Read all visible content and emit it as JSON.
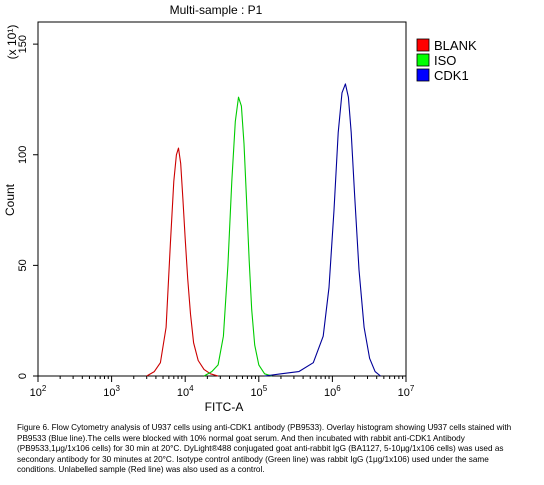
{
  "chart_data": {
    "type": "line",
    "title": "Multi-sample : P1",
    "xlabel": "FITC-A",
    "ylabel": "Count",
    "y_multiplier_label": "(x 10¹)",
    "x_scale": "log",
    "xlim": [
      100,
      10000000
    ],
    "ylim": [
      0,
      160
    ],
    "x_tick_values": [
      100,
      1000,
      10000,
      100000,
      1000000,
      10000000
    ],
    "x_tick_labels": [
      {
        "base": "10",
        "exp": "2"
      },
      {
        "base": "10",
        "exp": "3"
      },
      {
        "base": "10",
        "exp": "4"
      },
      {
        "base": "10",
        "exp": "5"
      },
      {
        "base": "10",
        "exp": "6"
      },
      {
        "base": "10",
        "exp": "7"
      }
    ],
    "y_ticks": [
      0,
      50,
      100,
      150
    ],
    "legend_position": "top-right",
    "series": [
      {
        "name": "BLANK",
        "color": "#cc0000",
        "legend_color": "#ff0000",
        "peak_x": 8000,
        "peak_y": 103,
        "points": [
          [
            3000,
            0
          ],
          [
            3800,
            2
          ],
          [
            4600,
            6
          ],
          [
            5500,
            22
          ],
          [
            6300,
            60
          ],
          [
            7000,
            88
          ],
          [
            7600,
            100
          ],
          [
            8100,
            103
          ],
          [
            8700,
            96
          ],
          [
            9300,
            80
          ],
          [
            10000,
            62
          ],
          [
            10800,
            44
          ],
          [
            11800,
            28
          ],
          [
            13000,
            15
          ],
          [
            15000,
            7
          ],
          [
            18000,
            3
          ],
          [
            22000,
            1
          ],
          [
            28000,
            0
          ]
        ]
      },
      {
        "name": "ISO",
        "color": "#00cc00",
        "legend_color": "#00ff00",
        "peak_x": 55000,
        "peak_y": 126,
        "points": [
          [
            18000,
            0
          ],
          [
            23000,
            2
          ],
          [
            28000,
            5
          ],
          [
            33000,
            18
          ],
          [
            38000,
            50
          ],
          [
            43000,
            88
          ],
          [
            48000,
            115
          ],
          [
            53000,
            126
          ],
          [
            58000,
            122
          ],
          [
            63000,
            105
          ],
          [
            68000,
            80
          ],
          [
            74000,
            52
          ],
          [
            80000,
            30
          ],
          [
            88000,
            14
          ],
          [
            100000,
            5
          ],
          [
            120000,
            1
          ],
          [
            150000,
            0
          ]
        ]
      },
      {
        "name": "CDK1",
        "color": "#000099",
        "legend_color": "#0000ff",
        "peak_x": 1500000,
        "peak_y": 132,
        "points": [
          [
            120000,
            0
          ],
          [
            200000,
            1
          ],
          [
            350000,
            2
          ],
          [
            550000,
            6
          ],
          [
            750000,
            18
          ],
          [
            900000,
            40
          ],
          [
            1050000,
            75
          ],
          [
            1200000,
            110
          ],
          [
            1350000,
            128
          ],
          [
            1500000,
            132
          ],
          [
            1650000,
            126
          ],
          [
            1800000,
            110
          ],
          [
            2000000,
            82
          ],
          [
            2300000,
            48
          ],
          [
            2700000,
            22
          ],
          [
            3200000,
            8
          ],
          [
            3800000,
            2
          ],
          [
            4500000,
            0
          ]
        ]
      }
    ]
  },
  "caption": "Figure 6. Flow Cytometry analysis of U937 cells using anti-CDK1 antibody (PB9533).  Overlay histogram showing U937 cells stained with PB9533 (Blue line).The cells were blocked with 10% normal goat serum. And then incubated with rabbit anti-CDK1 Antibody (PB9533,1μg/1x106 cells) for 30 min at 20°C. DyLight®488 conjugated goat anti-rabbit IgG (BA1127, 5-10μg/1x106 cells) was used as secondary antibody for 30 minutes at 20°C. Isotype control antibody (Green line) was rabbit IgG (1μg/1x106) used under the same conditions. Unlabelled sample (Red line) was also used as a control."
}
